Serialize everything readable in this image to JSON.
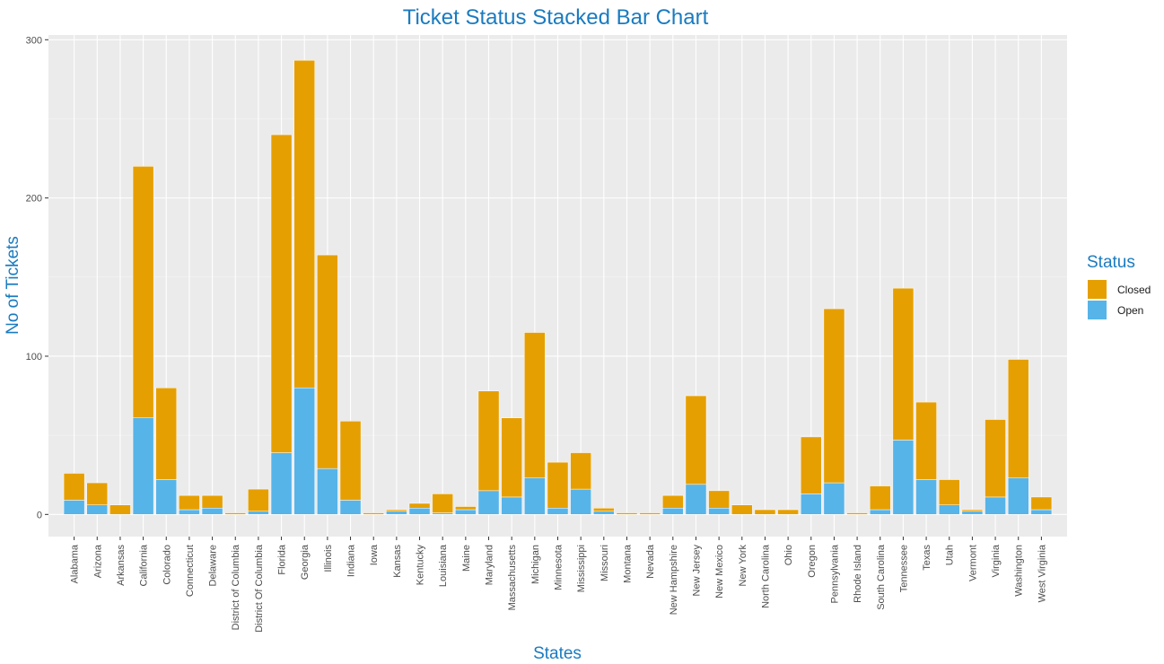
{
  "chart_data": {
    "type": "bar",
    "stacked": true,
    "title": "Ticket Status Stacked Bar Chart",
    "xlabel": "States",
    "ylabel": "No of Tickets",
    "ylim": [
      -14,
      303
    ],
    "yticks": [
      0,
      100,
      200,
      300
    ],
    "grid": true,
    "legend": {
      "title": "Status",
      "placement": "right"
    },
    "categories": [
      "Alabama",
      "Arizona",
      "Arkansas",
      "California",
      "Colorado",
      "Connecticut",
      "Delaware",
      "District of Columbia",
      "District Of Columbia",
      "Florida",
      "Georgia",
      "Illinois",
      "Indiana",
      "Iowa",
      "Kansas",
      "Kentucky",
      "Louisiana",
      "Maine",
      "Maryland",
      "Massachusetts",
      "Michigan",
      "Minnesota",
      "Mississippi",
      "Missouri",
      "Montana",
      "Nevada",
      "New Hampshire",
      "New Jersey",
      "New Mexico",
      "New York",
      "North Carolina",
      "Ohio",
      "Oregon",
      "Pennsylvania",
      "Rhode Island",
      "South Carolina",
      "Tennessee",
      "Texas",
      "Utah",
      "Vermont",
      "Virginia",
      "Washington",
      "West Virginia"
    ],
    "series": [
      {
        "name": "Open",
        "color": "#56b4e9",
        "values": [
          9,
          6,
          0,
          61,
          22,
          3,
          4,
          0,
          2,
          39,
          80,
          29,
          9,
          0,
          2,
          4,
          1,
          3,
          15,
          11,
          23,
          4,
          16,
          2,
          0,
          0,
          4,
          19,
          4,
          0,
          0,
          0,
          13,
          20,
          0,
          3,
          47,
          22,
          6,
          2,
          11,
          23,
          3
        ]
      },
      {
        "name": "Closed",
        "color": "#e69f00",
        "values": [
          17,
          14,
          6,
          159,
          58,
          9,
          8,
          1,
          14,
          201,
          207,
          135,
          50,
          1,
          1,
          3,
          12,
          2,
          63,
          50,
          92,
          29,
          23,
          2,
          1,
          1,
          8,
          56,
          11,
          6,
          3,
          3,
          36,
          110,
          1,
          15,
          96,
          49,
          16,
          1,
          49,
          75,
          8
        ]
      }
    ],
    "stack_order_bottom_to_top": [
      "Open",
      "Closed"
    ],
    "legend_order": [
      "Closed",
      "Open"
    ]
  }
}
